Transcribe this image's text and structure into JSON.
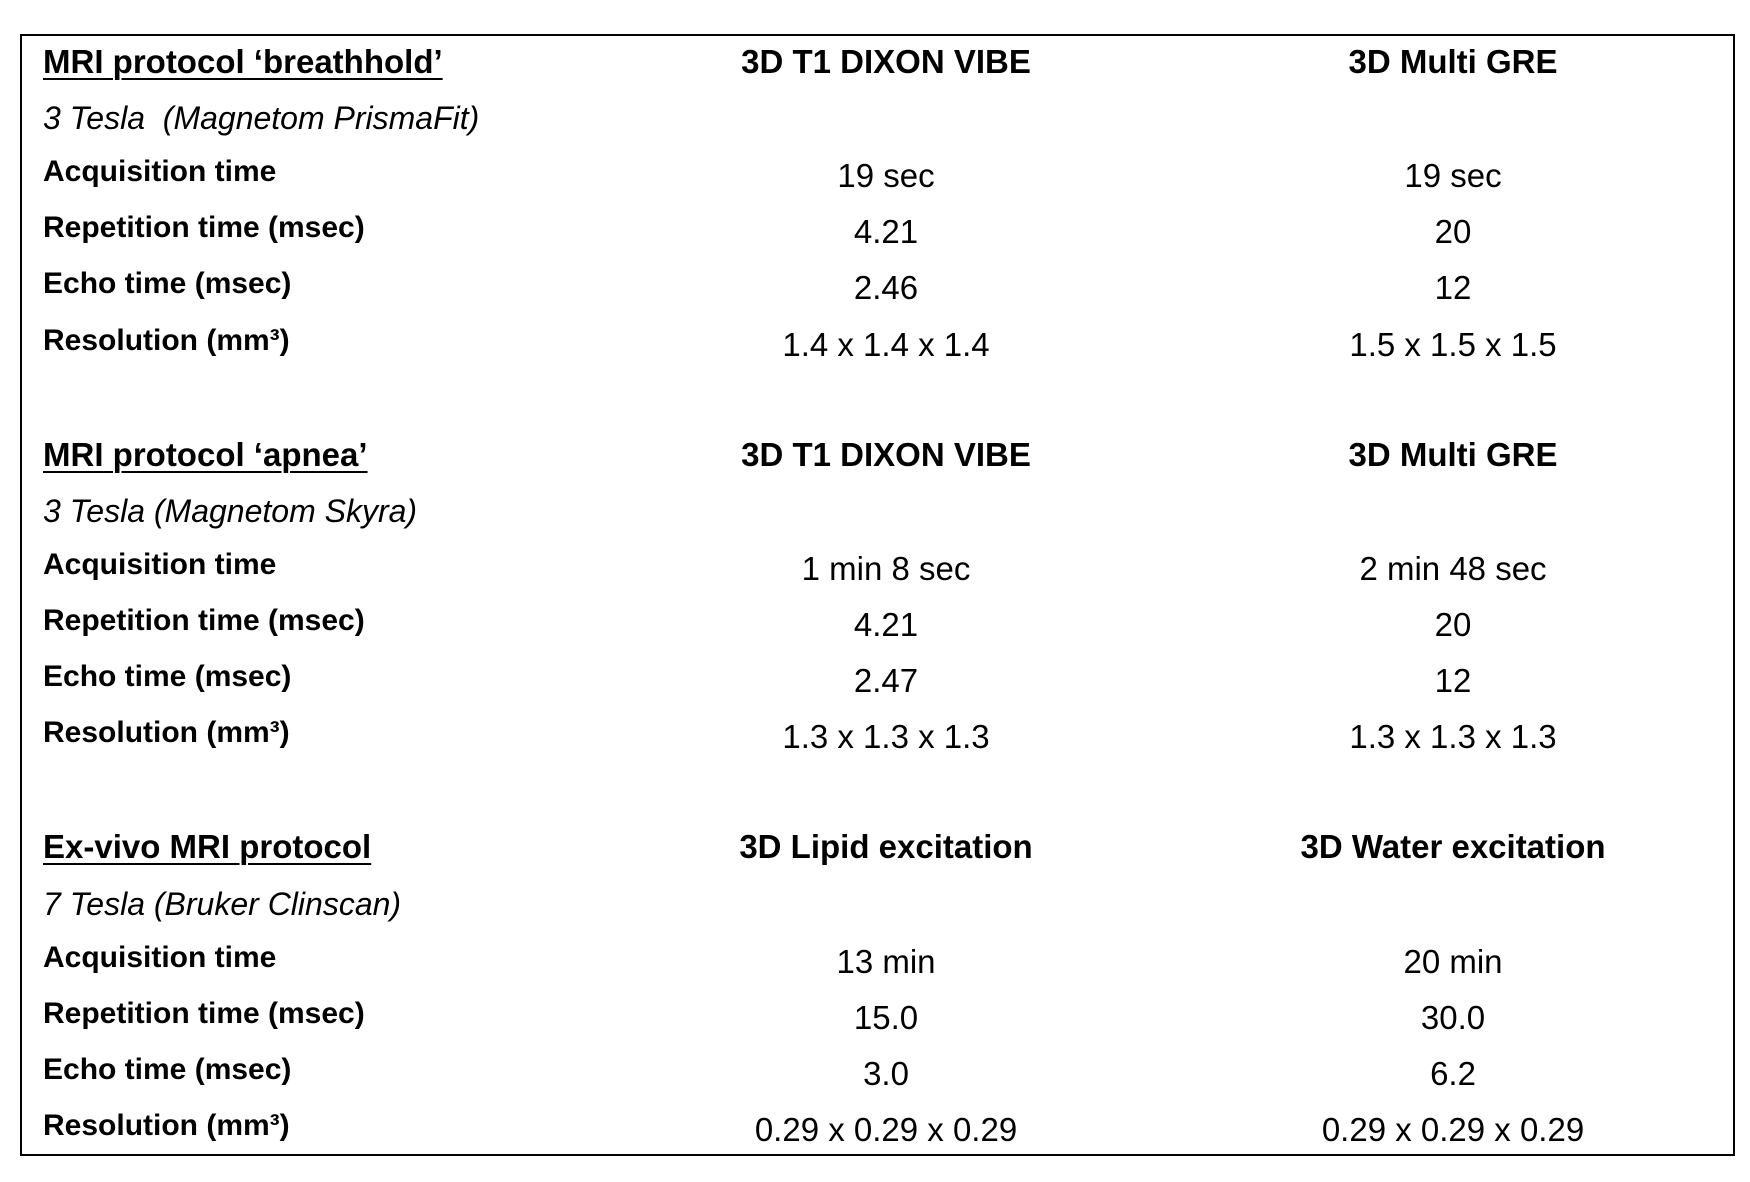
{
  "sections": [
    {
      "title": "MRI protocol ‘breathhold’",
      "subtitle": "3 Tesla  (Magnetom PrismaFit)",
      "columns": [
        "3D T1 DIXON VIBE",
        "3D Multi GRE"
      ],
      "rows": [
        {
          "label": "Acquisition time",
          "values": [
            "19 sec",
            "19 sec"
          ]
        },
        {
          "label": "Repetition time (msec)",
          "values": [
            "4.21",
            "20"
          ]
        },
        {
          "label": "Echo time (msec)",
          "values": [
            "2.46",
            "12"
          ]
        },
        {
          "label": "Resolution (mm³)",
          "values": [
            "1.4 x 1.4 x 1.4",
            "1.5 x 1.5 x 1.5"
          ]
        }
      ]
    },
    {
      "title": "MRI protocol ‘apnea’",
      "subtitle": "3 Tesla (Magnetom Skyra)",
      "columns": [
        "3D T1 DIXON VIBE",
        "3D Multi GRE"
      ],
      "rows": [
        {
          "label": "Acquisition time",
          "values": [
            "1 min 8 sec",
            "2 min 48 sec"
          ]
        },
        {
          "label": "Repetition time (msec)",
          "values": [
            "4.21",
            "20"
          ]
        },
        {
          "label": "Echo time (msec)",
          "values": [
            "2.47",
            "12"
          ]
        },
        {
          "label": "Resolution (mm³)",
          "values": [
            "1.3 x 1.3 x 1.3",
            "1.3 x 1.3 x 1.3"
          ]
        }
      ]
    },
    {
      "title": "Ex-vivo MRI protocol",
      "subtitle": "7 Tesla (Bruker Clinscan)",
      "columns": [
        "3D Lipid excitation",
        "3D Water excitation"
      ],
      "rows": [
        {
          "label": "Acquisition time",
          "values": [
            "13 min",
            "20 min"
          ]
        },
        {
          "label": "Repetition time (msec)",
          "values": [
            "15.0",
            "30.0"
          ]
        },
        {
          "label": "Echo time (msec)",
          "values": [
            "3.0",
            "6.2"
          ]
        },
        {
          "label": "Resolution (mm³)",
          "values": [
            "0.29 x 0.29 x 0.29",
            "0.29 x 0.29 x 0.29"
          ]
        }
      ]
    }
  ]
}
